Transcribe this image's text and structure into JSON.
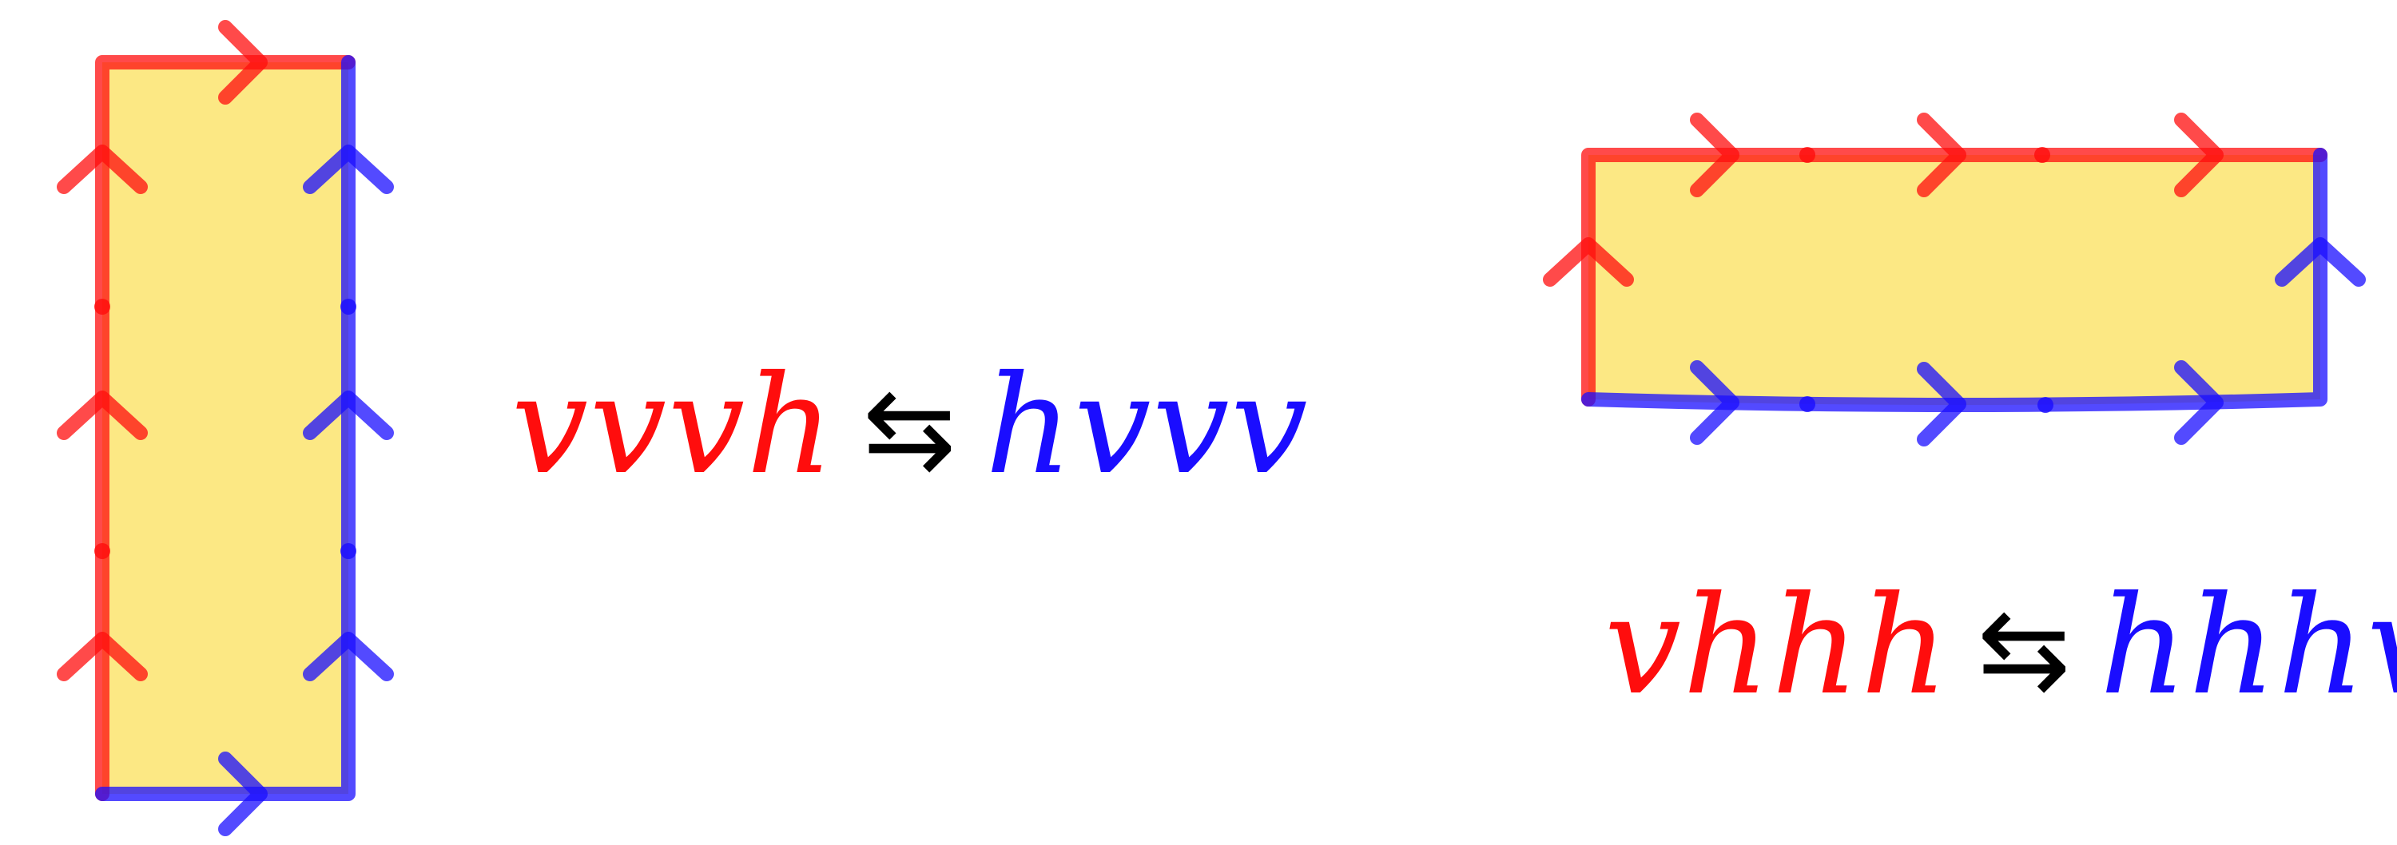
{
  "colors": {
    "red": "#ff0d0d",
    "blue": "#1a0dff",
    "fill": "#fce884",
    "arrow": "#000000"
  },
  "left_relation": {
    "lhs": "vvvh",
    "arrow": "⇆",
    "rhs": "hvvv",
    "lhs_color": "red",
    "rhs_color": "blue"
  },
  "right_relation": {
    "lhs": "vhhh",
    "arrow": "⇆",
    "rhs": "hhhv",
    "lhs_color": "red",
    "rhs_color": "blue"
  },
  "left_tile": {
    "red_path": "vvvh",
    "blue_path": "hvvv",
    "edge_directions": "up / right"
  },
  "right_tile": {
    "red_path": "vhhh",
    "blue_path": "hhhv",
    "edge_directions": "up / right"
  }
}
